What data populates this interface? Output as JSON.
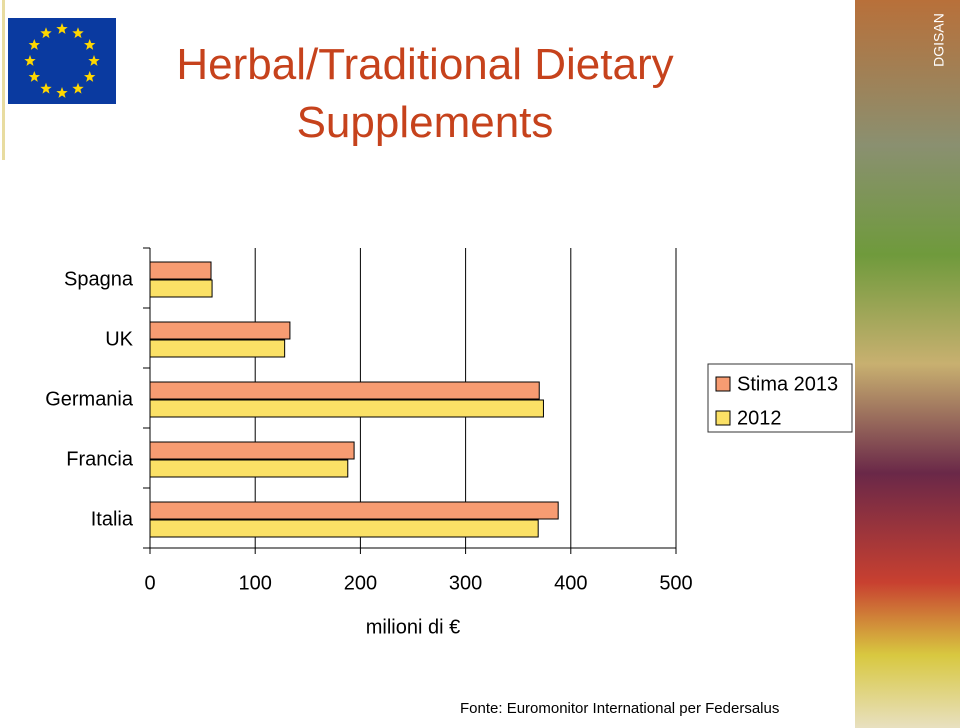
{
  "chart_data": {
    "type": "hbar",
    "title": "Herbal/Traditional Dietary Supplements",
    "x_label": "milioni di €",
    "source": "Fonte: Euromonitor International per Federsalus",
    "categories": [
      "Spagna",
      "UK",
      "Germania",
      "Francia",
      "Italia"
    ],
    "series": [
      {
        "name": "Stima 2013",
        "color": "#f79c72",
        "values": [
          58,
          133,
          370,
          194,
          388
        ]
      },
      {
        "name": "2012",
        "color": "#fbe166",
        "values": [
          59,
          128,
          374,
          188,
          369
        ]
      }
    ],
    "xlim": [
      0,
      500
    ],
    "xticks": [
      0,
      100,
      200,
      300,
      400,
      500
    ],
    "grid": true,
    "legend": "right"
  },
  "side_text": "DGISAN"
}
